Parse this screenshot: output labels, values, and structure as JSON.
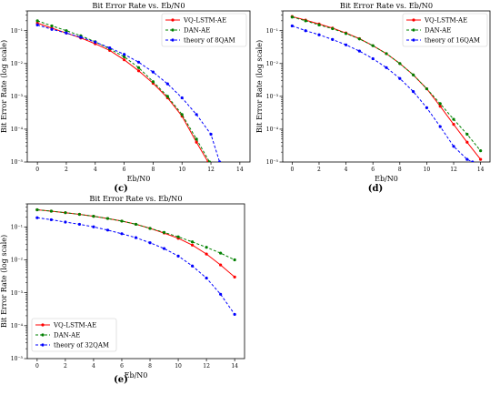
{
  "chart_data": [
    {
      "type": "line",
      "title": "Bit Error Rate vs. Eb/N0",
      "xlabel": "Eb/N0",
      "ylabel": "Bit Error Rate (log scale)",
      "panel_label": "(c)",
      "y_scale": "log",
      "xlim": [
        -0.7,
        14.7
      ],
      "ylim": [
        1e-05,
        0.4
      ],
      "xticks": [
        0,
        2,
        4,
        6,
        8,
        10,
        12,
        14
      ],
      "yticks": [
        {
          "v": 0.1,
          "label": "10⁻¹"
        },
        {
          "v": 0.01,
          "label": "10⁻²"
        },
        {
          "v": 0.001,
          "label": "10⁻³"
        },
        {
          "v": 0.0001,
          "label": "10⁻⁴"
        },
        {
          "v": 1e-05,
          "label": "10⁻⁵"
        }
      ],
      "legend": "top-right",
      "grid": false,
      "series": [
        {
          "name": "VQ-LSTM-AE",
          "color": "#ff0000",
          "style": "solid",
          "x": [
            0,
            1,
            2,
            3,
            4,
            5,
            6,
            7,
            8,
            9,
            10,
            11,
            11.8
          ],
          "y": [
            0.17,
            0.12,
            0.085,
            0.06,
            0.04,
            0.025,
            0.013,
            0.006,
            0.0025,
            0.0009,
            0.00025,
            4e-05,
            1e-05
          ]
        },
        {
          "name": "DAN-AE",
          "color": "#008000",
          "style": "dashed",
          "x": [
            0,
            1,
            2,
            3,
            4,
            5,
            6,
            7,
            8,
            9,
            10,
            11,
            11.9
          ],
          "y": [
            0.2,
            0.14,
            0.1,
            0.07,
            0.046,
            0.028,
            0.016,
            0.0075,
            0.0028,
            0.001,
            0.00028,
            5e-05,
            1e-05
          ]
        },
        {
          "name": "theory of 8QAM",
          "color": "#0000ff",
          "style": "dashed",
          "x": [
            0,
            1,
            2,
            3,
            4,
            5,
            6,
            7,
            8,
            9,
            10,
            11,
            12,
            12.6
          ],
          "y": [
            0.15,
            0.11,
            0.085,
            0.063,
            0.045,
            0.03,
            0.019,
            0.011,
            0.0055,
            0.0024,
            0.0009,
            0.00028,
            7e-05,
            1e-05
          ]
        }
      ]
    },
    {
      "type": "line",
      "title": "Bit Error Rate vs. Eb/N0",
      "xlabel": "Eb/N0",
      "ylabel": "Bit Error Rate (log scale)",
      "panel_label": "(d)",
      "y_scale": "log",
      "xlim": [
        -0.7,
        14.7
      ],
      "ylim": [
        1e-05,
        0.4
      ],
      "xticks": [
        0,
        2,
        4,
        6,
        8,
        10,
        12,
        14
      ],
      "yticks": [
        {
          "v": 0.1,
          "label": "10⁻¹"
        },
        {
          "v": 0.01,
          "label": "10⁻²"
        },
        {
          "v": 0.001,
          "label": "10⁻³"
        },
        {
          "v": 0.0001,
          "label": "10⁻⁴"
        },
        {
          "v": 1e-05,
          "label": "10⁻⁵"
        }
      ],
      "legend": "top-right",
      "grid": false,
      "series": [
        {
          "name": "VQ-LSTM-AE",
          "color": "#ff0000",
          "style": "solid",
          "x": [
            0,
            1,
            2,
            3,
            4,
            5,
            6,
            7,
            8,
            9,
            10,
            11,
            12,
            13,
            14
          ],
          "y": [
            0.27,
            0.21,
            0.16,
            0.12,
            0.085,
            0.057,
            0.035,
            0.02,
            0.01,
            0.0045,
            0.0017,
            0.0005,
            0.00014,
            4e-05,
            1.2e-05
          ]
        },
        {
          "name": "DAN-AE",
          "color": "#008000",
          "style": "dashed",
          "x": [
            0,
            1,
            2,
            3,
            4,
            5,
            6,
            7,
            8,
            9,
            10,
            11,
            12,
            13,
            14
          ],
          "y": [
            0.26,
            0.2,
            0.15,
            0.115,
            0.082,
            0.056,
            0.035,
            0.02,
            0.01,
            0.0045,
            0.0017,
            0.0006,
            0.0002,
            7e-05,
            2.2e-05
          ]
        },
        {
          "name": "theory of 16QAM",
          "color": "#0000ff",
          "style": "dashed",
          "x": [
            0,
            1,
            2,
            3,
            4,
            5,
            6,
            7,
            8,
            9,
            10,
            11,
            12,
            13,
            13.4
          ],
          "y": [
            0.14,
            0.1,
            0.075,
            0.054,
            0.037,
            0.024,
            0.014,
            0.0075,
            0.0035,
            0.0014,
            0.00045,
            0.00012,
            3e-05,
            1.2e-05,
            1e-05
          ]
        }
      ]
    },
    {
      "type": "line",
      "title": "Bit Error Rate vs. Eb/N0",
      "xlabel": "Eb/N0",
      "ylabel": "Bit Error Rate (log scale)",
      "panel_label": "(e)",
      "y_scale": "log",
      "xlim": [
        -0.7,
        14.7
      ],
      "ylim": [
        1e-05,
        0.5
      ],
      "xticks": [
        0,
        2,
        4,
        6,
        8,
        10,
        12,
        14
      ],
      "yticks": [
        {
          "v": 0.1,
          "label": "10⁻¹"
        },
        {
          "v": 0.01,
          "label": "10⁻²"
        },
        {
          "v": 0.001,
          "label": "10⁻³"
        },
        {
          "v": 0.0001,
          "label": "10⁻⁴"
        },
        {
          "v": 1e-05,
          "label": "10⁻⁵"
        }
      ],
      "legend": "bottom-left",
      "grid": false,
      "series": [
        {
          "name": "VQ-LSTM-AE",
          "color": "#ff0000",
          "style": "solid",
          "x": [
            0,
            1,
            2,
            3,
            4,
            5,
            6,
            7,
            8,
            9,
            10,
            11,
            12,
            13,
            14
          ],
          "y": [
            0.33,
            0.3,
            0.27,
            0.24,
            0.21,
            0.18,
            0.15,
            0.12,
            0.09,
            0.065,
            0.045,
            0.028,
            0.015,
            0.007,
            0.003
          ]
        },
        {
          "name": "DAN-AE",
          "color": "#008000",
          "style": "dashed",
          "x": [
            0,
            1,
            2,
            3,
            4,
            5,
            6,
            7,
            8,
            9,
            10,
            11,
            12,
            13,
            14
          ],
          "y": [
            0.33,
            0.3,
            0.27,
            0.24,
            0.21,
            0.18,
            0.15,
            0.12,
            0.09,
            0.068,
            0.05,
            0.035,
            0.024,
            0.016,
            0.01
          ]
        },
        {
          "name": "theory of 32QAM",
          "color": "#0000ff",
          "style": "dashed",
          "x": [
            0,
            1,
            2,
            3,
            4,
            5,
            6,
            7,
            8,
            9,
            10,
            11,
            12,
            13,
            14
          ],
          "y": [
            0.19,
            0.165,
            0.14,
            0.12,
            0.1,
            0.08,
            0.062,
            0.047,
            0.033,
            0.022,
            0.013,
            0.0065,
            0.0028,
            0.0009,
            0.00022
          ]
        }
      ]
    }
  ]
}
